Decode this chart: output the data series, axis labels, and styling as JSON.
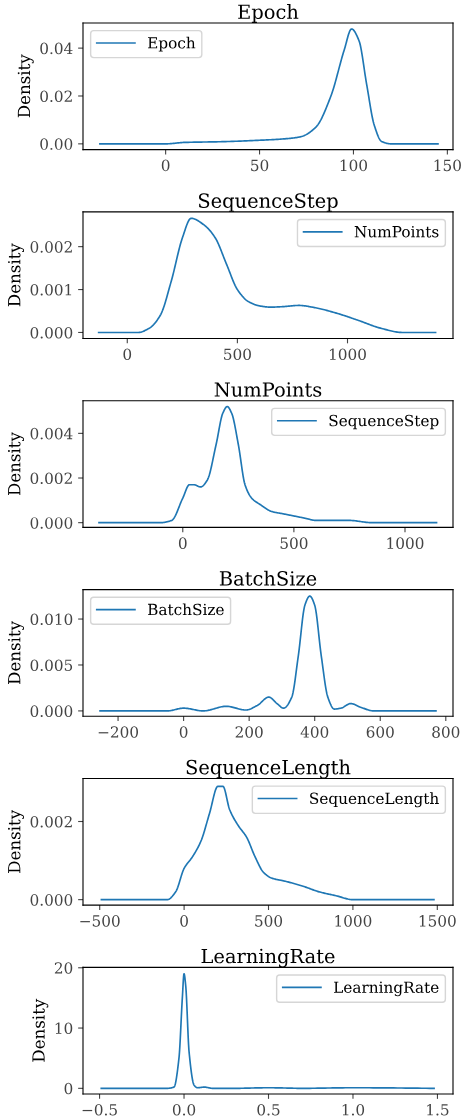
{
  "chart_data": [
    {
      "type": "line",
      "title": "Epoch",
      "ylabel": "Density",
      "legend": "upper left",
      "series": [
        {
          "name": "Epoch",
          "color": "#1f77b4",
          "x": [
            -35,
            0,
            10,
            30,
            50,
            65,
            72,
            80,
            88,
            95,
            99,
            103,
            107,
            111,
            115,
            120,
            145
          ],
          "values": [
            0,
            0,
            0.0006,
            0.0009,
            0.0015,
            0.0022,
            0.003,
            0.007,
            0.02,
            0.039,
            0.048,
            0.043,
            0.025,
            0.008,
            0.001,
            0,
            0
          ]
        }
      ],
      "xlim": [
        -44,
        153
      ],
      "ylim": [
        -0.0024,
        0.0505
      ],
      "xticks": [
        0,
        50,
        100,
        150
      ],
      "yticks": [
        {
          "value": 0,
          "label": "0.00"
        },
        {
          "value": 0.02,
          "label": "0.02"
        },
        {
          "value": 0.04,
          "label": "0.04"
        }
      ]
    },
    {
      "type": "line",
      "title": "SequenceStep",
      "ylabel": "Density",
      "legend": "upper right",
      "series": [
        {
          "name": "NumPoints",
          "color": "#1f77b4",
          "x": [
            -130,
            50,
            100,
            150,
            200,
            250,
            290,
            350,
            400,
            450,
            500,
            550,
            600,
            650,
            700,
            780,
            850,
            950,
            1050,
            1150,
            1250,
            1400
          ],
          "values": [
            0,
            0,
            0.0001,
            0.0004,
            0.0012,
            0.0022,
            0.00266,
            0.0025,
            0.0022,
            0.0016,
            0.001,
            0.00072,
            0.00062,
            0.00059,
            0.0006,
            0.00063,
            0.00058,
            0.00045,
            0.00028,
            0.0001,
            0,
            0
          ]
        }
      ],
      "xlim": [
        -201,
        1479
      ],
      "ylim": [
        -0.00014,
        0.00281
      ],
      "xticks": [
        0,
        500,
        1000
      ],
      "yticks": [
        {
          "value": 0,
          "label": "0.000"
        },
        {
          "value": 0.001,
          "label": "0.001"
        },
        {
          "value": 0.002,
          "label": "0.002"
        }
      ]
    },
    {
      "type": "line",
      "title": "NumPoints",
      "ylabel": "Density",
      "legend": "upper right",
      "series": [
        {
          "name": "SequenceStep",
          "color": "#1f77b4",
          "x": [
            -377,
            -100,
            -50,
            0,
            30,
            50,
            80,
            110,
            150,
            180,
            200,
            220,
            250,
            280,
            310,
            350,
            400,
            450,
            500,
            550,
            600,
            700,
            750,
            850,
            1142
          ],
          "values": [
            0,
            0,
            0.0001,
            0.0011,
            0.0017,
            0.0017,
            0.0016,
            0.0019,
            0.0035,
            0.0049,
            0.0052,
            0.0049,
            0.0035,
            0.0017,
            0.0011,
            0.0008,
            0.0005,
            0.0004,
            0.0003,
            0.0002,
            0.0001,
            0.0001,
            0.0001,
            0,
            0
          ]
        }
      ],
      "xlim": [
        -449,
        1216
      ],
      "ylim": [
        -0.00021,
        0.00546
      ],
      "xticks": [
        0,
        500,
        1000
      ],
      "yticks": [
        {
          "value": 0,
          "label": "0.000"
        },
        {
          "value": 0.002,
          "label": "0.002"
        },
        {
          "value": 0.004,
          "label": "0.004"
        }
      ]
    },
    {
      "type": "line",
      "title": "BatchSize",
      "ylabel": "Density",
      "legend": "upper left",
      "series": [
        {
          "name": "BatchSize",
          "color": "#1f77b4",
          "x": [
            -255,
            -100,
            -50,
            0,
            60,
            130,
            190,
            225,
            260,
            285,
            305,
            330,
            350,
            370,
            385,
            400,
            420,
            440,
            460,
            480,
            510,
            540,
            580,
            770
          ],
          "values": [
            0,
            0,
            0,
            0.0003,
            0,
            0.0005,
            0.0001,
            0.0006,
            0.0015,
            0.0008,
            0.0003,
            0.0015,
            0.006,
            0.0115,
            0.0125,
            0.0115,
            0.006,
            0.0015,
            0.0002,
            0.0003,
            0.0008,
            0.0004,
            0,
            0
          ]
        }
      ],
      "xlim": [
        -307,
        822
      ],
      "ylim": [
        -0.00058,
        0.0132
      ],
      "xticks": [
        {
          "value": -200,
          "label": "−200"
        },
        0,
        200,
        400,
        600,
        800
      ],
      "yticks": [
        {
          "value": 0,
          "label": "0.000"
        },
        {
          "value": 0.005,
          "label": "0.005"
        },
        {
          "value": 0.01,
          "label": "0.010"
        }
      ]
    },
    {
      "type": "line",
      "title": "SequenceLength",
      "ylabel": "Density",
      "legend": "upper right",
      "series": [
        {
          "name": "SequenceLength",
          "color": "#1f77b4",
          "x": [
            -490,
            -150,
            -100,
            -50,
            0,
            50,
            100,
            150,
            200,
            230,
            270,
            320,
            370,
            420,
            470,
            520,
            600,
            700,
            800,
            900,
            1000,
            1100,
            1480
          ],
          "values": [
            0,
            0,
            0,
            0.0002,
            0.0008,
            0.0011,
            0.0015,
            0.0022,
            0.0029,
            0.0029,
            0.0023,
            0.0019,
            0.0016,
            0.0011,
            0.0007,
            0.00055,
            0.00047,
            0.00035,
            0.0002,
            0.0001,
            0,
            0,
            0
          ]
        }
      ],
      "xlim": [
        -599,
        1593
      ],
      "ylim": [
        -0.00014,
        0.0031
      ],
      "xticks": [
        {
          "value": -500,
          "label": "−500"
        },
        0,
        500,
        1000,
        1500
      ],
      "yticks": [
        {
          "value": 0,
          "label": "0.000"
        },
        {
          "value": 0.002,
          "label": "0.002"
        }
      ]
    },
    {
      "type": "line",
      "title": "LearningRate",
      "ylabel": "Density",
      "legend": "upper right",
      "series": [
        {
          "name": "LearningRate",
          "color": "#1f77b4",
          "x": [
            -0.49,
            -0.1,
            -0.06,
            -0.03,
            -0.01,
            0,
            0.01,
            0.03,
            0.06,
            0.08,
            0.12,
            0.17,
            0.3,
            0.5,
            0.7,
            1.0,
            1.48
          ],
          "values": [
            0,
            0,
            0.2,
            5,
            15,
            19,
            17,
            6,
            0.5,
            0.1,
            0.2,
            0,
            0,
            0.1,
            0,
            0.1,
            0
          ]
        }
      ],
      "xlim": [
        -0.598,
        1.592
      ],
      "ylim": [
        -0.94,
        20.06
      ],
      "xticks": [
        {
          "value": -0.5,
          "label": "−0.5"
        },
        {
          "value": 0,
          "label": "0.0"
        },
        0.5,
        {
          "value": 1,
          "label": "1.0"
        },
        1.5
      ],
      "yticks": [
        0,
        10,
        20
      ]
    }
  ]
}
